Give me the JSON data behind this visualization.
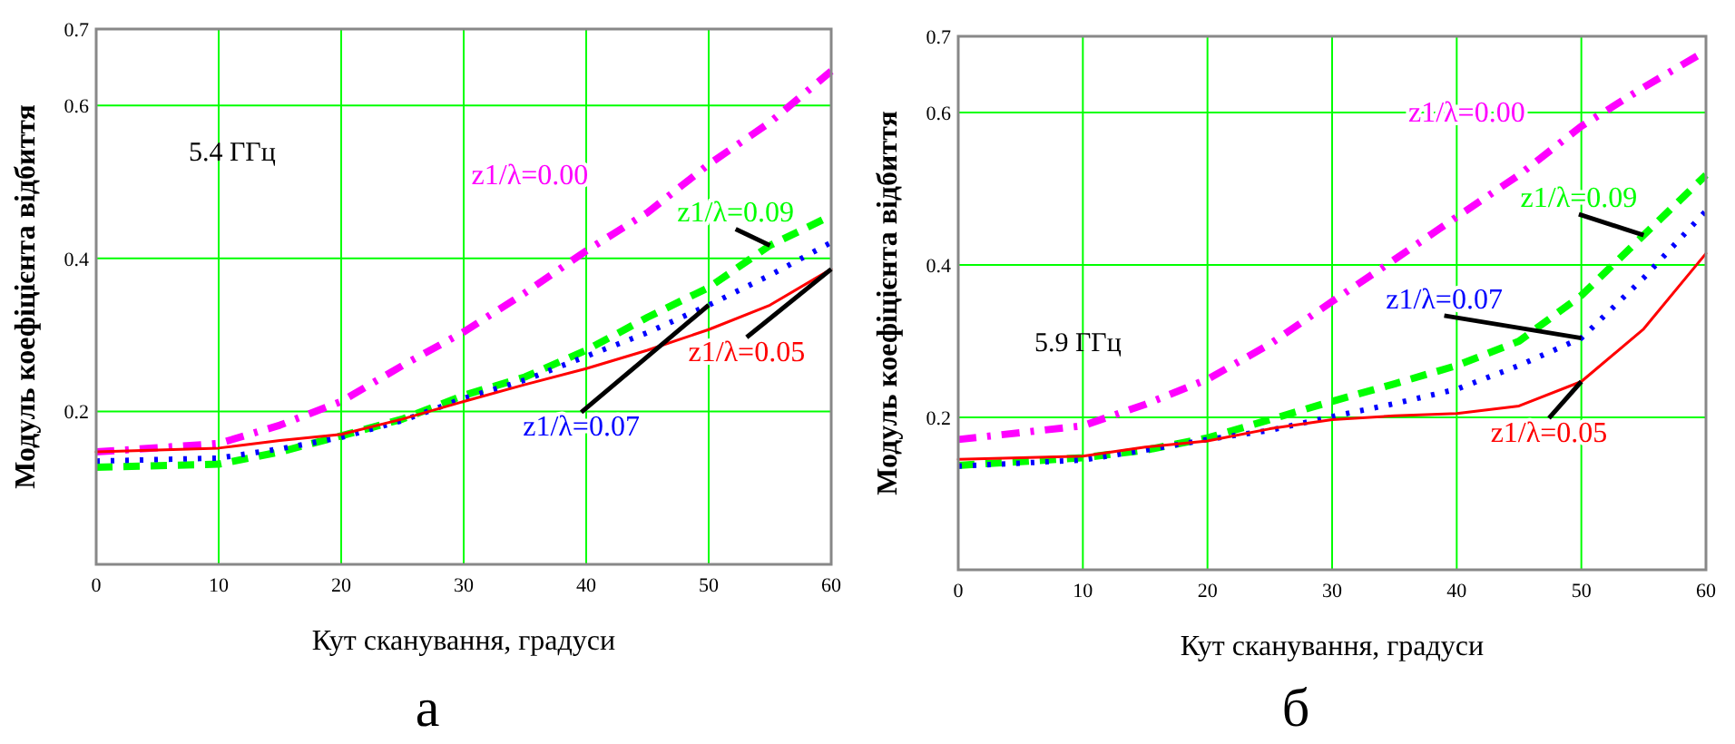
{
  "chart_data": [
    {
      "type": "line",
      "xlabel": "Кут сканування, градуси",
      "ylabel": "Модуль коефіцієнта відбиття",
      "x": [
        0,
        10,
        15,
        20,
        25,
        30,
        35,
        40,
        45,
        50,
        55,
        60
      ],
      "xlim": [
        0,
        60
      ],
      "xticks": [
        0,
        10,
        20,
        30,
        40,
        50,
        60
      ],
      "ylim": [
        0,
        0.7
      ],
      "yticks": [
        0.2,
        0.4,
        0.6,
        0.7
      ],
      "grid": true,
      "annotations": [
        "5.4 ГГц",
        "а"
      ],
      "series": [
        {
          "name": "z1/λ=0.00",
          "color": "#ff00ff",
          "line_style": "dashdot",
          "values": [
            0.147,
            0.158,
            0.182,
            0.213,
            0.26,
            0.304,
            0.355,
            0.41,
            0.46,
            0.523,
            0.578,
            0.645
          ]
        },
        {
          "name": "z1/λ=0.09",
          "color": "#00ff00",
          "line_style": "dashed",
          "values": [
            0.127,
            0.131,
            0.147,
            0.168,
            0.19,
            0.221,
            0.245,
            0.28,
            0.323,
            0.362,
            0.417,
            0.456
          ]
        },
        {
          "name": "z1/λ=0.07",
          "color": "#0000ff",
          "line_style": "dotted",
          "values": [
            0.135,
            0.139,
            0.151,
            0.166,
            0.188,
            0.217,
            0.241,
            0.272,
            0.303,
            0.339,
            0.378,
            0.421
          ]
        },
        {
          "name": "z1/λ=0.05",
          "color": "#ff0000",
          "line_style": "solid",
          "values": [
            0.147,
            0.152,
            0.162,
            0.17,
            0.19,
            0.213,
            0.235,
            0.256,
            0.28,
            0.307,
            0.339,
            0.386
          ]
        }
      ]
    },
    {
      "type": "line",
      "xlabel": "Кут сканування, градуси",
      "ylabel": "Модуль коефіцієнта відбиття",
      "x": [
        0,
        10,
        15,
        20,
        25,
        30,
        35,
        40,
        45,
        50,
        55,
        60
      ],
      "xlim": [
        0,
        60
      ],
      "xticks": [
        0,
        10,
        20,
        30,
        40,
        50,
        60
      ],
      "ylim": [
        0,
        0.7
      ],
      "yticks": [
        0.2,
        0.4,
        0.6,
        0.7
      ],
      "grid": true,
      "annotations": [
        "5.9 ГГц",
        "б"
      ],
      "series": [
        {
          "name": "z1/λ=0.00",
          "color": "#ff00ff",
          "line_style": "dashdot",
          "values": [
            0.171,
            0.189,
            0.217,
            0.25,
            0.296,
            0.352,
            0.407,
            0.463,
            0.518,
            0.582,
            0.633,
            0.681
          ]
        },
        {
          "name": "z1/λ=0.09",
          "color": "#00ff00",
          "line_style": "dashed",
          "values": [
            0.137,
            0.147,
            0.157,
            0.173,
            0.197,
            0.221,
            0.244,
            0.268,
            0.3,
            0.36,
            0.439,
            0.518
          ]
        },
        {
          "name": "z1/λ=0.07",
          "color": "#0000ff",
          "line_style": "dotted",
          "values": [
            0.136,
            0.144,
            0.157,
            0.171,
            0.183,
            0.201,
            0.218,
            0.237,
            0.268,
            0.304,
            0.383,
            0.471
          ]
        },
        {
          "name": "z1/λ=0.05",
          "color": "#ff0000",
          "line_style": "solid",
          "values": [
            0.145,
            0.149,
            0.161,
            0.169,
            0.185,
            0.197,
            0.202,
            0.205,
            0.215,
            0.247,
            0.316,
            0.415
          ]
        }
      ]
    }
  ]
}
